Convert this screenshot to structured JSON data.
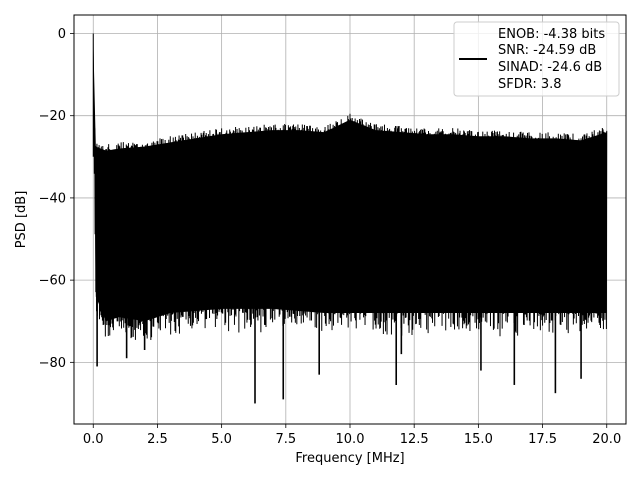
{
  "chart_data": {
    "type": "line",
    "title": "",
    "xlabel": "Frequency [MHz]",
    "ylabel": "PSD [dB]",
    "xlim": [
      -0.75,
      20.75
    ],
    "ylim": [
      -95,
      4.5
    ],
    "xticks": [
      0.0,
      2.5,
      5.0,
      7.5,
      10.0,
      12.5,
      15.0,
      17.5,
      20.0
    ],
    "xtick_labels": [
      "0.0",
      "2.5",
      "5.0",
      "7.5",
      "10.0",
      "12.5",
      "15.0",
      "17.5",
      "20.0"
    ],
    "yticks": [
      0,
      -20,
      -40,
      -60,
      -80
    ],
    "ytick_labels": [
      "0",
      "−20",
      "−40",
      "−60",
      "−80"
    ],
    "grid": true,
    "legend_position": "top-right",
    "series": [
      {
        "color": "#000000",
        "x_range": [
          0,
          20
        ],
        "peak": {
          "x": 0.0,
          "y": 0
        },
        "upper_envelope": [
          [
            0.0,
            0
          ],
          [
            0.05,
            -22
          ],
          [
            0.1,
            -26
          ],
          [
            0.5,
            -27
          ],
          [
            1.0,
            -26.5
          ],
          [
            2.0,
            -26
          ],
          [
            3.0,
            -25
          ],
          [
            4.0,
            -24
          ],
          [
            5.0,
            -23
          ],
          [
            6.0,
            -22.5
          ],
          [
            7.0,
            -22
          ],
          [
            8.0,
            -22
          ],
          [
            9.0,
            -22.5
          ],
          [
            10.0,
            -19.5
          ],
          [
            11.0,
            -22
          ],
          [
            12.0,
            -22.5
          ],
          [
            13.0,
            -23
          ],
          [
            14.0,
            -23
          ],
          [
            15.0,
            -23.5
          ],
          [
            16.0,
            -23.5
          ],
          [
            17.0,
            -24
          ],
          [
            18.0,
            -24
          ],
          [
            19.0,
            -24.5
          ],
          [
            20.0,
            -22.5
          ]
        ],
        "lower_envelope": [
          [
            0.0,
            -8
          ],
          [
            0.1,
            -66
          ],
          [
            0.5,
            -72
          ],
          [
            1.0,
            -71
          ],
          [
            2.0,
            -72
          ],
          [
            3.0,
            -70
          ],
          [
            5.0,
            -69
          ],
          [
            7.0,
            -69
          ],
          [
            9.0,
            -70
          ],
          [
            11.0,
            -70
          ],
          [
            13.0,
            -70
          ],
          [
            15.0,
            -70
          ],
          [
            17.0,
            -70
          ],
          [
            19.0,
            -70
          ],
          [
            20.0,
            -70
          ]
        ],
        "deep_notches": [
          [
            0.15,
            -81
          ],
          [
            6.3,
            -90
          ],
          [
            7.4,
            -89
          ],
          [
            8.8,
            -83
          ],
          [
            11.8,
            -85.5
          ],
          [
            15.1,
            -82
          ],
          [
            16.4,
            -85.5
          ],
          [
            18.0,
            -87.5
          ],
          [
            19.0,
            -84
          ],
          [
            2.0,
            -77
          ],
          [
            1.3,
            -79
          ],
          [
            12.0,
            -78
          ]
        ]
      }
    ],
    "legend": {
      "lines": [
        "ENOB: -4.38 bits",
        "SNR: -24.59 dB",
        "SINAD: -24.6 dB",
        "SFDR: 3.8"
      ]
    }
  }
}
